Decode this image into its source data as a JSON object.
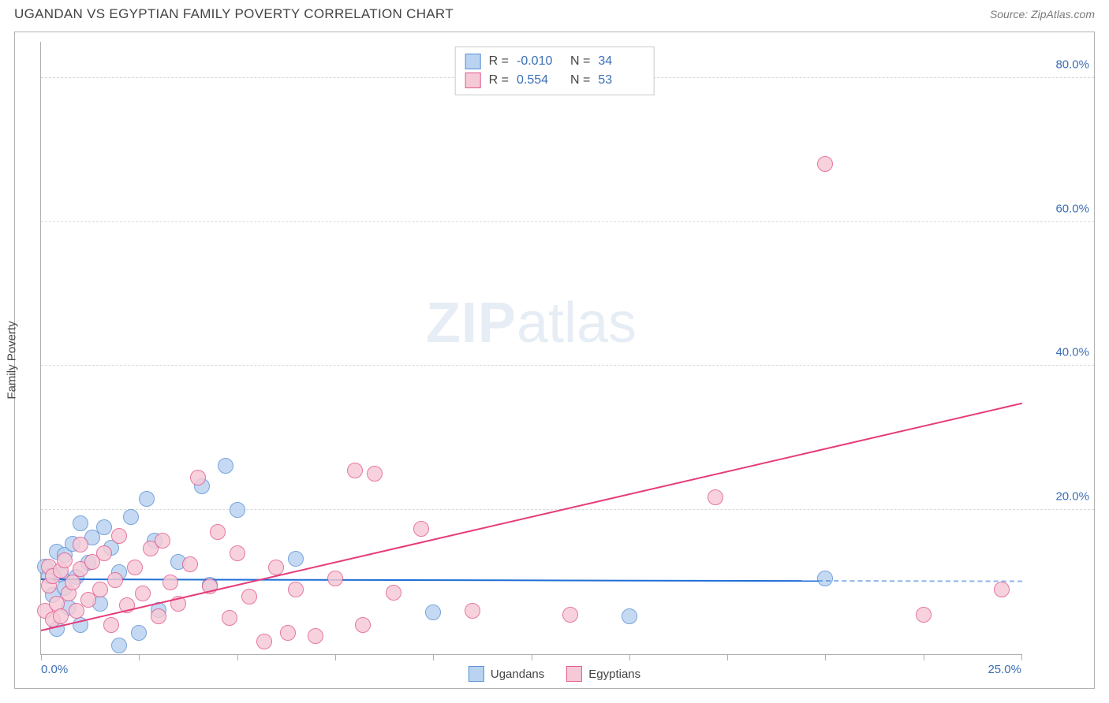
{
  "title": "UGANDAN VS EGYPTIAN FAMILY POVERTY CORRELATION CHART",
  "source": "Source: ZipAtlas.com",
  "ylabel": "Family Poverty",
  "watermark_main": "ZIP",
  "watermark_sub": "atlas",
  "chart": {
    "type": "scatter",
    "background_color": "#ffffff",
    "grid_color": "#d9d9d9",
    "axis_color": "#b0b0b0",
    "x": {
      "min": 0,
      "max": 25,
      "ticks": [
        0,
        2.5,
        5,
        7.5,
        10,
        12.5,
        15,
        17.5,
        20,
        22.5,
        25
      ],
      "labels_min": "0.0%",
      "labels_max": "25.0%"
    },
    "y": {
      "min": 0,
      "max": 85,
      "gridlines": [
        20,
        40,
        60,
        80
      ],
      "labels": [
        "20.0%",
        "40.0%",
        "60.0%",
        "80.0%"
      ]
    },
    "label_color": "#3b6fb6",
    "label_fontsize": 15
  },
  "series": [
    {
      "name": "Ugandans",
      "fill": "#b9d3f0",
      "stroke": "#5a8fd6",
      "trend_color": "#1f6fd6",
      "trend": {
        "y_at_xmin": 10.6,
        "y_at_xmax": 10.3,
        "solid_until_x": 19.8
      },
      "marker_r": 10,
      "points": [
        [
          0.1,
          12.1
        ],
        [
          0.2,
          10.8
        ],
        [
          0.3,
          8.2
        ],
        [
          0.4,
          14.2
        ],
        [
          0.4,
          3.5
        ],
        [
          0.5,
          11.0
        ],
        [
          0.6,
          9.2
        ],
        [
          0.6,
          13.8
        ],
        [
          0.7,
          6.5
        ],
        [
          0.8,
          15.3
        ],
        [
          0.9,
          10.7
        ],
        [
          1.0,
          18.2
        ],
        [
          1.0,
          4.0
        ],
        [
          1.2,
          12.7
        ],
        [
          1.3,
          16.2
        ],
        [
          1.5,
          7.0
        ],
        [
          1.6,
          17.6
        ],
        [
          1.8,
          14.8
        ],
        [
          2.0,
          1.2
        ],
        [
          2.0,
          11.4
        ],
        [
          2.3,
          19.0
        ],
        [
          2.5,
          3.0
        ],
        [
          2.7,
          21.5
        ],
        [
          2.9,
          15.8
        ],
        [
          3.0,
          6.1
        ],
        [
          3.5,
          12.8
        ],
        [
          4.1,
          23.3
        ],
        [
          4.3,
          9.6
        ],
        [
          4.7,
          26.1
        ],
        [
          5.0,
          20.0
        ],
        [
          6.5,
          13.2
        ],
        [
          10.0,
          5.8
        ],
        [
          15.0,
          5.2
        ],
        [
          20.0,
          10.5
        ]
      ]
    },
    {
      "name": "Egyptians",
      "fill": "#f6c9d6",
      "stroke": "#e05a8f",
      "trend_color": "#e63b7a",
      "trend": {
        "y_at_xmin": 3.5,
        "y_at_xmax": 35.0,
        "solid_until_x": 25
      },
      "marker_r": 10,
      "points": [
        [
          0.1,
          6.0
        ],
        [
          0.2,
          9.5
        ],
        [
          0.2,
          12.1
        ],
        [
          0.3,
          4.8
        ],
        [
          0.3,
          10.8
        ],
        [
          0.4,
          7.0
        ],
        [
          0.5,
          11.6
        ],
        [
          0.5,
          5.2
        ],
        [
          0.6,
          13.0
        ],
        [
          0.7,
          8.4
        ],
        [
          0.8,
          10.0
        ],
        [
          0.9,
          6.0
        ],
        [
          1.0,
          11.8
        ],
        [
          1.0,
          15.2
        ],
        [
          1.2,
          7.5
        ],
        [
          1.3,
          12.8
        ],
        [
          1.5,
          9.0
        ],
        [
          1.6,
          14.0
        ],
        [
          1.8,
          4.0
        ],
        [
          1.9,
          10.3
        ],
        [
          2.0,
          16.4
        ],
        [
          2.2,
          6.8
        ],
        [
          2.4,
          12.0
        ],
        [
          2.6,
          8.4
        ],
        [
          2.8,
          14.7
        ],
        [
          3.0,
          5.2
        ],
        [
          3.1,
          15.7
        ],
        [
          3.3,
          10.0
        ],
        [
          3.5,
          7.0
        ],
        [
          3.8,
          12.5
        ],
        [
          4.0,
          24.5
        ],
        [
          4.3,
          9.4
        ],
        [
          4.5,
          17.0
        ],
        [
          4.8,
          5.0
        ],
        [
          5.0,
          14.0
        ],
        [
          5.3,
          8.0
        ],
        [
          5.7,
          1.8
        ],
        [
          6.0,
          12.0
        ],
        [
          6.3,
          3.0
        ],
        [
          6.5,
          9.0
        ],
        [
          7.0,
          2.5
        ],
        [
          7.5,
          10.5
        ],
        [
          8.0,
          25.5
        ],
        [
          8.2,
          4.0
        ],
        [
          8.5,
          25.0
        ],
        [
          9.0,
          8.5
        ],
        [
          9.7,
          17.4
        ],
        [
          11.0,
          6.0
        ],
        [
          13.5,
          5.5
        ],
        [
          17.2,
          21.8
        ],
        [
          20.0,
          68.0
        ],
        [
          22.5,
          5.5
        ],
        [
          24.5,
          9.0
        ]
      ]
    }
  ],
  "correlation_legend": [
    {
      "swatch_fill": "#b9d3f0",
      "swatch_stroke": "#5a8fd6",
      "r_label": "R =",
      "r_value": "-0.010",
      "n_label": "N =",
      "n_value": "34"
    },
    {
      "swatch_fill": "#f6c9d6",
      "swatch_stroke": "#e05a8f",
      "r_label": "R =",
      "r_value": "0.554",
      "n_label": "N =",
      "n_value": "53"
    }
  ],
  "bottom_legend": [
    {
      "swatch_fill": "#b9d3f0",
      "swatch_stroke": "#5a8fd6",
      "label": "Ugandans"
    },
    {
      "swatch_fill": "#f6c9d6",
      "swatch_stroke": "#e05a8f",
      "label": "Egyptians"
    }
  ]
}
